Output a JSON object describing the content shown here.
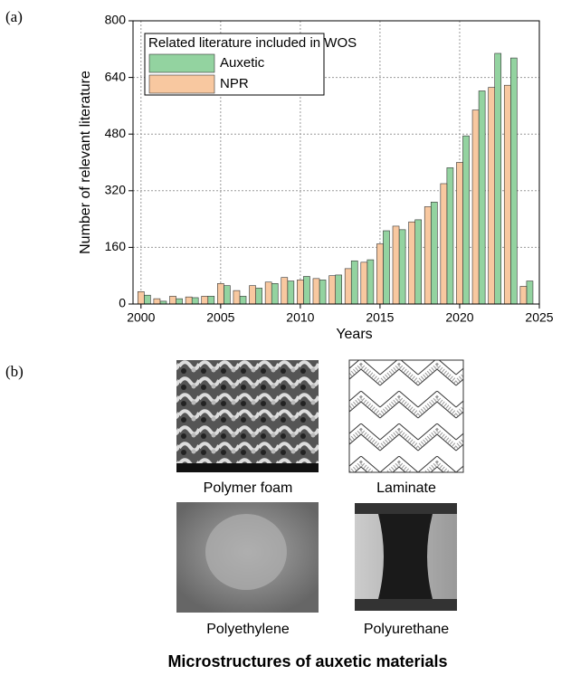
{
  "panel_labels": [
    "(a)",
    "(b)"
  ],
  "chart_data": {
    "type": "bar",
    "x_label": "Years",
    "y_label": "Number of relevant literature",
    "legend_title": "Related literature included in WOS",
    "legend": "upper-left",
    "grid": true,
    "x": [
      2000,
      2001,
      2002,
      2003,
      2004,
      2005,
      2006,
      2007,
      2008,
      2009,
      2010,
      2011,
      2012,
      2013,
      2014,
      2015,
      2016,
      2017,
      2018,
      2019,
      2020,
      2021,
      2022,
      2023,
      2024
    ],
    "series": [
      {
        "name": "Auxetic",
        "color": "#93d3a0",
        "values": [
          25,
          8,
          15,
          18,
          22,
          52,
          22,
          45,
          58,
          65,
          78,
          68,
          82,
          122,
          125,
          207,
          210,
          238,
          288,
          385,
          475,
          602,
          708,
          695,
          65
        ]
      },
      {
        "name": "NPR",
        "color": "#f8c8a0",
        "values": [
          35,
          15,
          22,
          20,
          22,
          58,
          38,
          52,
          62,
          75,
          68,
          72,
          80,
          100,
          118,
          170,
          220,
          232,
          275,
          340,
          400,
          548,
          612,
          618,
          50
        ]
      }
    ],
    "xlim": [
      1999.5,
      2025
    ],
    "xticks": [
      2000,
      2005,
      2010,
      2015,
      2020,
      2025
    ],
    "ylim": [
      0,
      800
    ],
    "yticks": [
      0,
      160,
      320,
      480,
      640,
      800
    ]
  },
  "images": [
    {
      "label": "Polymer foam"
    },
    {
      "label": "Laminate"
    },
    {
      "label": "Polyethylene"
    },
    {
      "label": "Polyurethane"
    }
  ],
  "caption": "Microstructures of auxetic materials"
}
